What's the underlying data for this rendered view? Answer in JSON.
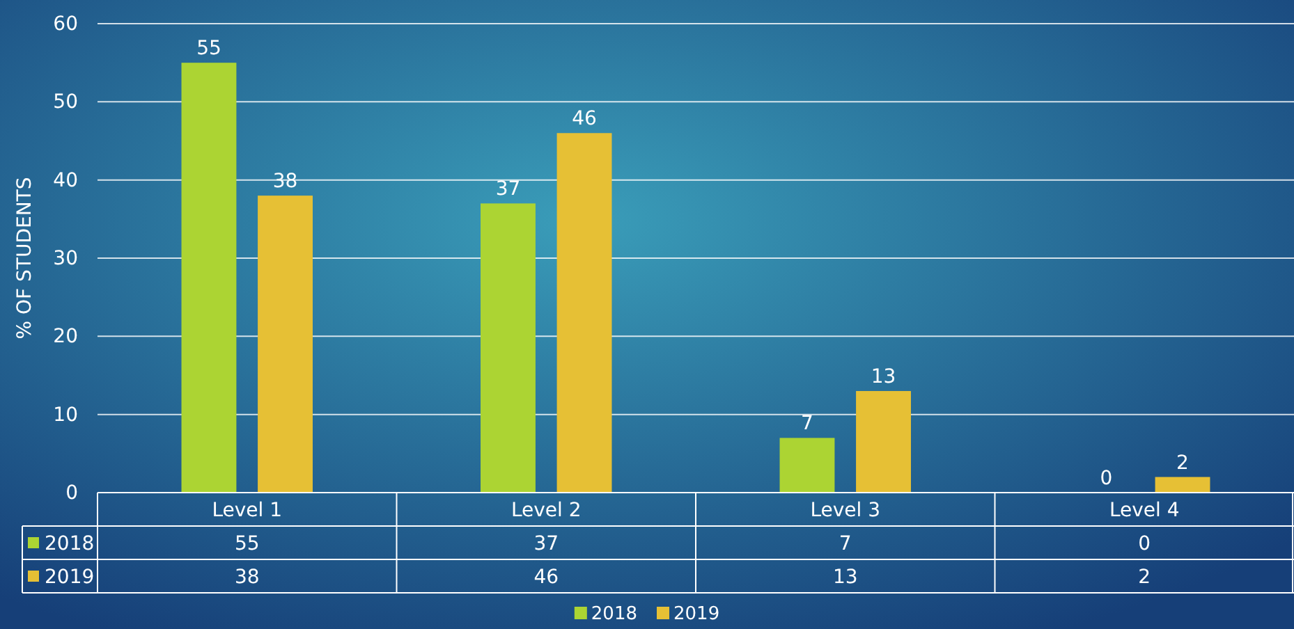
{
  "chart_data": {
    "type": "bar",
    "ylabel": "% OF STUDENTS",
    "categories": [
      "Level 1",
      "Level 2",
      "Level 3",
      "Level 4"
    ],
    "series": [
      {
        "name": "2018",
        "color": "#acd433",
        "values": [
          55,
          37,
          7,
          0
        ]
      },
      {
        "name": "2019",
        "color": "#e6c035",
        "values": [
          38,
          46,
          13,
          2
        ]
      }
    ],
    "annotations": [
      "55",
      "37",
      "7",
      "0",
      "38",
      "46",
      "13",
      "2"
    ],
    "ylim": [
      0,
      60
    ],
    "yticks": [
      0,
      10,
      20,
      30,
      40,
      50,
      60
    ],
    "grid": "y",
    "data_labels": true,
    "legend": "bottom"
  }
}
